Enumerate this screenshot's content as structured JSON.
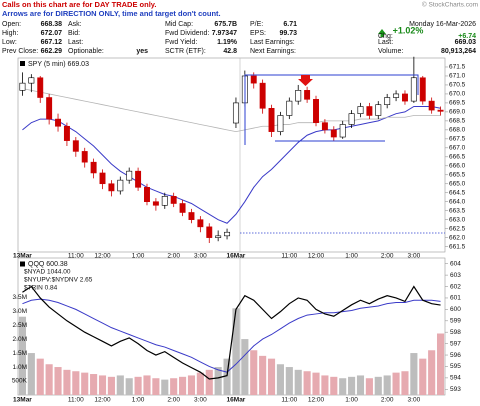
{
  "header": {
    "line1": "Calls on this chart are for DAY TRADE only.",
    "line2": "Arrows are for DIRECTION ONLY, time and target don't count.",
    "credit": "© StockCharts.com"
  },
  "quote": {
    "columns": [
      [
        [
          "Open:",
          "668.38"
        ],
        [
          "High:",
          "672.07"
        ],
        [
          "Low:",
          "667.12"
        ],
        [
          "Prev Close:",
          "662.29"
        ]
      ],
      [
        [
          "Ask:"
        ],
        [
          "Bid:"
        ],
        [
          "Last:"
        ],
        [
          "Optionable:",
          "yes"
        ]
      ],
      [
        [
          "Mid Cap:",
          "675.7B"
        ],
        [
          "Fwd Dividend:",
          "7.97347"
        ],
        [
          "Fwd Yield:",
          "1.19%"
        ],
        [
          "SCTR (ETF):",
          "42.8"
        ]
      ],
      [
        [
          "P/E:",
          "6.71"
        ],
        [
          "EPS:",
          "99.73"
        ],
        [
          "Last Earnings:"
        ],
        [
          "Next Earnings:"
        ]
      ]
    ],
    "date": "Monday 16-Mar-2026",
    "change_pct": "+1.02%",
    "right": [
      [
        "Chg:",
        "+6.74"
      ],
      [
        "Last:",
        "669.03"
      ],
      [
        "Volume:",
        "80,913,264"
      ]
    ]
  },
  "chart_data": [
    {
      "type": "candlestick",
      "legend": "SPY (5 min) 669.03",
      "categories": [
        "13Mar",
        null,
        null,
        null,
        null,
        null,
        "11:00",
        null,
        null,
        "12:00",
        null,
        null,
        null,
        "1:00",
        null,
        null,
        null,
        "2:00",
        null,
        null,
        "3:00",
        null,
        null,
        null,
        "16Mar",
        null,
        null,
        null,
        null,
        null,
        "11:00",
        null,
        null,
        "12:00",
        null,
        null,
        null,
        "1:00",
        null,
        null,
        null,
        "2:00",
        null,
        null,
        "3:00",
        null,
        null,
        null
      ],
      "open": [
        670.2,
        670.6,
        670.9,
        669.8,
        668.6,
        668.2,
        667.4,
        666.8,
        666.2,
        665.6,
        665.0,
        664.6,
        665.2,
        665.7,
        664.8,
        664.0,
        663.8,
        664.3,
        663.9,
        663.4,
        663.0,
        662.6,
        662.0,
        662.1,
        668.38,
        669.5,
        671.0,
        670.6,
        669.2,
        667.9,
        668.8,
        669.6,
        670.2,
        669.7,
        668.4,
        668.0,
        667.6,
        668.3,
        668.9,
        669.3,
        668.8,
        669.4,
        669.8,
        670.0,
        669.6,
        670.9,
        669.6,
        669.1
      ],
      "high": [
        671.2,
        671.1,
        671.0,
        670.0,
        668.9,
        668.4,
        667.6,
        667.0,
        666.4,
        665.8,
        665.2,
        665.4,
        665.9,
        665.9,
        665.0,
        664.2,
        664.5,
        664.5,
        664.1,
        663.6,
        663.2,
        662.8,
        662.4,
        662.5,
        669.8,
        671.3,
        671.2,
        670.8,
        669.4,
        669.0,
        669.8,
        670.5,
        670.4,
        669.9,
        668.6,
        668.2,
        668.5,
        669.1,
        669.5,
        669.5,
        669.6,
        670.0,
        670.2,
        670.2,
        672.07,
        671.0,
        669.8,
        669.3
      ],
      "low": [
        669.9,
        670.1,
        669.5,
        668.3,
        667.9,
        667.1,
        666.5,
        665.9,
        665.3,
        664.7,
        664.3,
        664.4,
        665.0,
        664.6,
        663.8,
        663.5,
        663.6,
        663.7,
        663.2,
        662.8,
        662.3,
        661.7,
        661.8,
        661.9,
        668.1,
        669.3,
        670.3,
        668.9,
        667.6,
        667.7,
        668.6,
        669.4,
        669.5,
        668.2,
        667.8,
        667.4,
        667.5,
        668.1,
        668.7,
        668.6,
        668.6,
        669.2,
        669.6,
        669.4,
        669.5,
        669.4,
        668.9,
        668.8
      ],
      "close": [
        670.6,
        670.9,
        669.8,
        668.6,
        668.2,
        667.4,
        666.8,
        666.2,
        665.6,
        665.0,
        664.6,
        665.2,
        665.7,
        664.8,
        664.0,
        663.8,
        664.3,
        663.9,
        663.4,
        663.0,
        662.6,
        662.0,
        662.1,
        662.3,
        669.5,
        671.0,
        670.6,
        669.2,
        667.9,
        668.8,
        669.6,
        670.2,
        669.7,
        668.4,
        668.0,
        667.6,
        668.3,
        668.9,
        669.3,
        668.8,
        669.4,
        669.8,
        670.0,
        669.6,
        670.9,
        669.6,
        669.1,
        669.03
      ],
      "up_color": "#000000",
      "down_color": "#cc0000",
      "overlays": [
        {
          "color": "#3a3ac8",
          "values": [
            668.0,
            668.4,
            668.6,
            668.6,
            668.5,
            668.2,
            667.9,
            667.5,
            667.1,
            666.6,
            666.1,
            665.7,
            665.4,
            665.1,
            664.8,
            664.6,
            664.4,
            664.3,
            664.1,
            663.9,
            663.6,
            663.3,
            663.0,
            662.8,
            663.3,
            664.0,
            664.8,
            665.4,
            665.8,
            666.3,
            666.8,
            667.3,
            667.7,
            667.9,
            668.0,
            668.0,
            668.1,
            668.2,
            668.3,
            668.4,
            668.5,
            668.7,
            668.9,
            669.0,
            669.3,
            669.3,
            669.3,
            669.2
          ]
        },
        {
          "color": "#b4b4b4",
          "values": [
            670.3,
            670.2,
            670.1,
            670.0,
            669.9,
            669.8,
            669.7,
            669.6,
            669.5,
            669.4,
            669.3,
            669.2,
            669.1,
            669.0,
            668.9,
            668.8,
            668.7,
            668.6,
            668.5,
            668.4,
            668.3,
            668.2,
            668.1,
            668.0,
            667.9,
            668.0,
            668.1,
            668.2,
            668.2,
            668.3,
            668.3,
            668.4,
            668.4,
            668.4,
            668.5,
            668.5,
            668.5,
            668.5,
            668.6,
            668.6,
            668.6,
            668.7,
            668.7,
            668.7,
            668.8,
            668.8,
            668.8,
            668.8
          ]
        }
      ],
      "ylim": [
        661.2,
        672.0
      ],
      "yticks": [
        661.5,
        {
          "value": 662,
          "label": "662.0"
        },
        662.5,
        {
          "value": 663,
          "label": "663.0"
        },
        663.5,
        {
          "value": 664,
          "label": "664.0"
        },
        664.5,
        {
          "value": 665,
          "label": "665.0"
        },
        665.5,
        {
          "value": 666,
          "label": "666.0"
        },
        666.5,
        {
          "value": 667,
          "label": "667.0"
        },
        667.5,
        {
          "value": 668,
          "label": "668.0"
        },
        668.5,
        {
          "value": 669,
          "label": "669.0"
        },
        669.5,
        {
          "value": 670,
          "label": "670.0"
        },
        670.5,
        {
          "value": 671,
          "label": "671.0"
        },
        671.5
      ]
    },
    {
      "type": "line",
      "categories": [
        "13Mar",
        null,
        null,
        null,
        null,
        null,
        "11:00",
        null,
        null,
        "12:00",
        null,
        null,
        null,
        "1:00",
        null,
        null,
        null,
        "2:00",
        null,
        null,
        "3:00",
        null,
        null,
        null,
        "16Mar",
        null,
        null,
        null,
        null,
        null,
        "11:00",
        null,
        null,
        "12:00",
        null,
        null,
        null,
        "1:00",
        null,
        null,
        null,
        "2:00",
        null,
        null,
        "3:00",
        null,
        null,
        null
      ],
      "series": [
        {
          "name": "QQQ 600.38",
          "color": "#000000",
          "values": [
            601.5,
            602.0,
            601.0,
            600.2,
            599.6,
            599.0,
            598.5,
            598.0,
            597.6,
            597.2,
            596.8,
            597.2,
            597.5,
            597.0,
            596.4,
            596.0,
            596.3,
            595.8,
            595.3,
            594.9,
            594.5,
            593.9,
            594.0,
            594.2,
            600.0,
            601.2,
            600.8,
            600.0,
            599.2,
            599.8,
            600.5,
            601.0,
            600.8,
            600.0,
            599.6,
            599.4,
            599.9,
            600.4,
            600.8,
            600.5,
            600.9,
            601.2,
            601.0,
            600.7,
            602.0,
            600.8,
            600.5,
            600.38
          ]
        },
        {
          "color": "#3a3ac8",
          "values": [
            600.5,
            600.8,
            600.9,
            600.8,
            600.6,
            600.3,
            600.0,
            599.6,
            599.2,
            598.8,
            598.4,
            598.1,
            597.8,
            597.5,
            597.2,
            596.9,
            596.7,
            596.4,
            596.1,
            595.8,
            595.4,
            595.0,
            594.7,
            594.5,
            595.2,
            596.0,
            596.8,
            597.4,
            597.8,
            598.3,
            598.8,
            599.2,
            599.5,
            599.6,
            599.7,
            599.7,
            599.8,
            599.9,
            600.1,
            600.2,
            600.3,
            600.5,
            600.6,
            600.6,
            600.8,
            600.8,
            600.8,
            600.7
          ]
        }
      ],
      "volume": {
        "axis": "y2",
        "up_color": "#bdbdbd",
        "down_color": "#e6aab0",
        "values": [
          2800000,
          1500000,
          1300000,
          1100000,
          1000000,
          900000,
          850000,
          800000,
          750000,
          700000,
          650000,
          700000,
          600000,
          650000,
          700000,
          600000,
          550000,
          600000,
          650000,
          700000,
          800000,
          900000,
          1000000,
          1300000,
          3100000,
          2000000,
          1600000,
          1400000,
          1300000,
          1100000,
          1000000,
          900000,
          850000,
          800000,
          700000,
          650000,
          600000,
          650000,
          700000,
          600000,
          650000,
          700000,
          800000,
          850000,
          1500000,
          1300000,
          1600000,
          2200000
        ]
      },
      "legend_notes": [
        "$NYAD 1044.00",
        "$NYUPV:$NYDNV 2.65",
        "$TRIN 0.84"
      ],
      "ylim": [
        592.5,
        604.5
      ],
      "yticks": [
        593,
        594,
        595,
        596,
        597,
        598,
        599,
        600,
        601,
        602,
        603,
        604
      ],
      "y2lim": [
        0,
        4900000
      ],
      "y2ticks": [
        {
          "value": 500000,
          "label": "500K"
        },
        {
          "value": 1000000,
          "label": "1.0M"
        },
        {
          "value": 1500000,
          "label": "1.5M"
        },
        {
          "value": 2000000,
          "label": "2.0M"
        },
        {
          "value": 2500000,
          "label": "2.5M"
        },
        {
          "value": 3000000,
          "label": "3.0M"
        },
        {
          "value": 3500000,
          "label": "3.5M"
        }
      ]
    }
  ]
}
